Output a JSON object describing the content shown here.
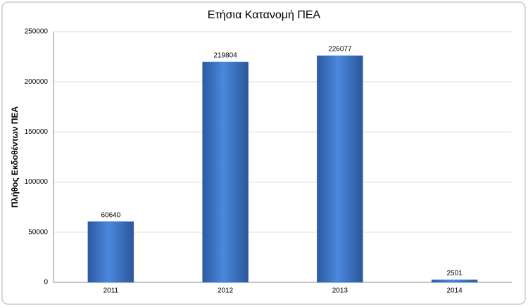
{
  "chart_data": {
    "type": "bar",
    "title": "Ετήσια Κατανομή ΠΕΑ",
    "y_label": "Πλήθος Εκδοθέντων ΠΕΑ",
    "categories": [
      "2011",
      "2012",
      "2013",
      "2014"
    ],
    "values": [
      60640,
      219804,
      226077,
      2501
    ],
    "color": "#3f79cf",
    "ylim": [
      0,
      250000
    ],
    "yticks": [
      0,
      50000,
      100000,
      150000,
      200000,
      250000
    ],
    "grid": true
  }
}
